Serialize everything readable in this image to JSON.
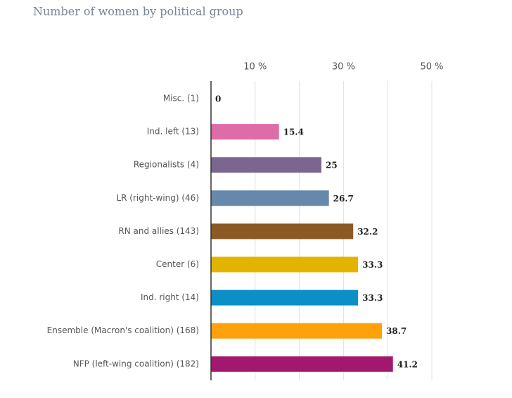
{
  "chart_data": {
    "type": "hbar",
    "title": "Number of women by political group",
    "categories": [
      "Misc. (1)",
      "Ind. left (13)",
      "Regionalists (4)",
      "LR (right-wing) (46)",
      "RN and allies (143)",
      "Center (6)",
      "Ind. right (14)",
      "Ensemble (Macron's coalition) (168)",
      "NFP (left-wing coalition) (182)"
    ],
    "values": [
      0,
      15.4,
      25,
      26.7,
      32.2,
      33.3,
      33.3,
      38.7,
      41.2
    ],
    "colors": [
      "#555555",
      "#dd6ca7",
      "#7b6690",
      "#6688aa",
      "#8b5a24",
      "#e2b400",
      "#0b8fc6",
      "#ffa10a",
      "#a3186f"
    ],
    "xlim": [
      0,
      50
    ],
    "xticks": [
      {
        "value": 10,
        "label": "10 %"
      },
      {
        "value": 30,
        "label": "30 %"
      },
      {
        "value": 50,
        "label": "50 %"
      }
    ],
    "minor_xticks": [
      20,
      40
    ],
    "grid": true
  }
}
